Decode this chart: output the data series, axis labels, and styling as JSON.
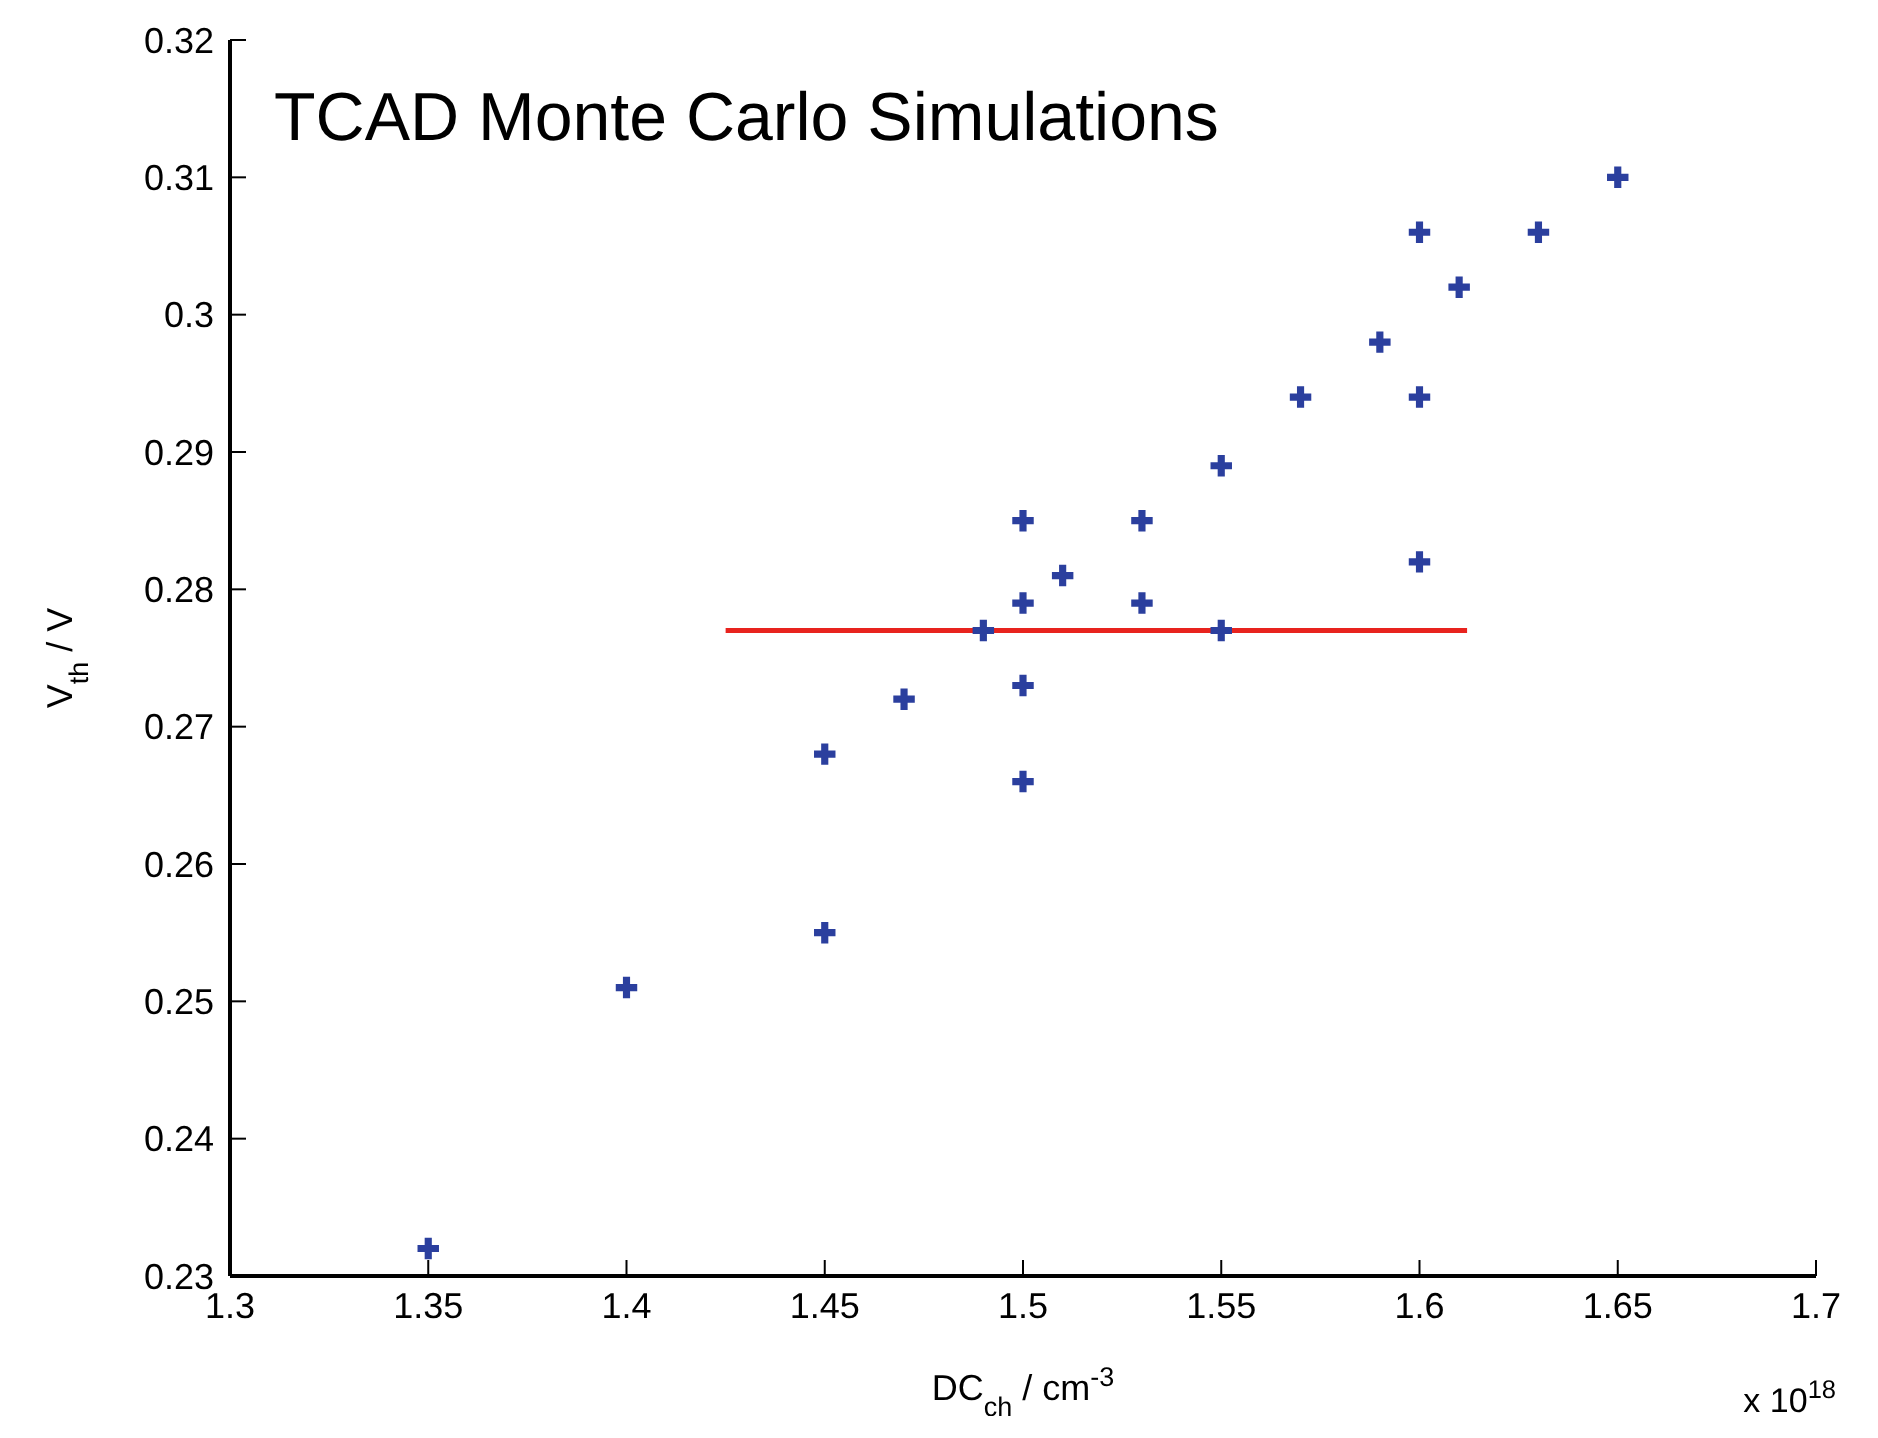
{
  "chart_data": {
    "type": "scatter",
    "title": "TCAD Monte Carlo Simulations",
    "xlabel": "DC$_{ch}$ / cm$^{-3}$",
    "ylabel": "V$_{th}$ / V",
    "annotations": [
      "x 10$^{18}$"
    ],
    "xlim": [
      1.3,
      1.7
    ],
    "xticks": [
      1.3,
      1.35,
      1.4,
      1.45,
      1.5,
      1.55,
      1.6,
      1.65,
      1.7
    ],
    "ylim": [
      0.23,
      0.32
    ],
    "yticks": [
      0.23,
      0.24,
      0.25,
      0.26,
      0.27,
      0.28,
      0.29,
      0.3,
      0.31,
      0.32
    ],
    "grid": false,
    "marker": "cross",
    "series": [
      {
        "color": "#2b3f9e",
        "x": [
          1.35,
          1.4,
          1.45,
          1.45,
          1.47,
          1.49,
          1.5,
          1.5,
          1.5,
          1.5,
          1.51,
          1.53,
          1.53,
          1.55,
          1.55,
          1.57,
          1.59,
          1.6,
          1.6,
          1.6,
          1.61,
          1.63,
          1.65
        ],
        "values": [
          0.232,
          0.251,
          0.268,
          0.255,
          0.272,
          0.277,
          0.285,
          0.279,
          0.273,
          0.266,
          0.281,
          0.285,
          0.279,
          0.289,
          0.277,
          0.294,
          0.298,
          0.306,
          0.294,
          0.282,
          0.302,
          0.306,
          0.31
        ]
      },
      {
        "type": "line",
        "marker": "none",
        "color": "#e8231e",
        "x": [
          1.425,
          1.612
        ],
        "values": [
          0.277,
          0.277
        ]
      }
    ]
  }
}
